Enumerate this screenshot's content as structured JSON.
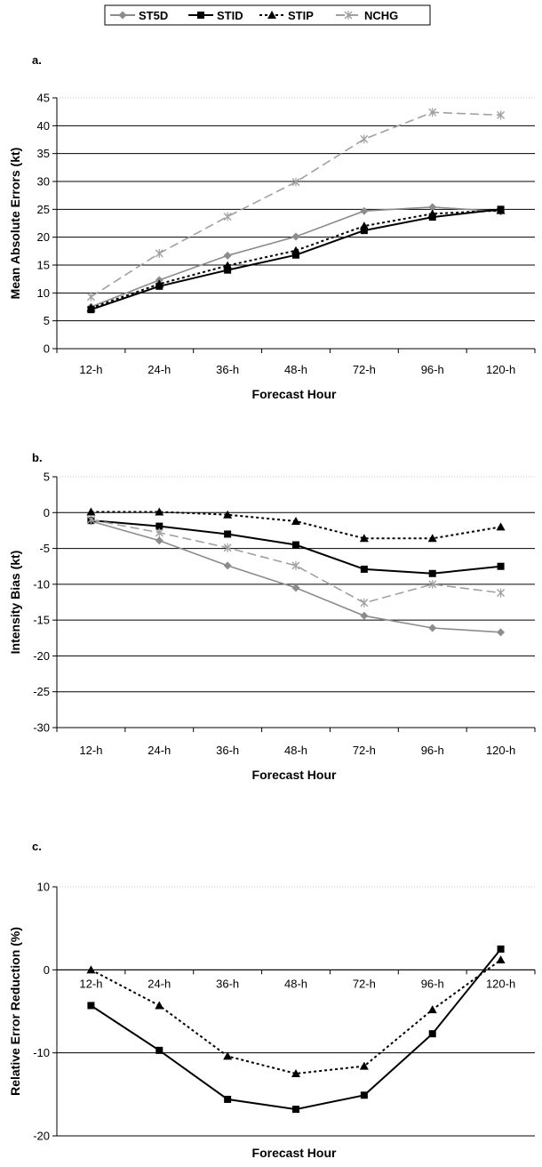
{
  "legend": {
    "entries": [
      "ST5D",
      "STID",
      "STIP",
      "NCHG"
    ]
  },
  "series_styles": {
    "ST5D": {
      "color": "#8c8c8c",
      "marker": "diamond",
      "dash": "solid"
    },
    "STID": {
      "color": "#000000",
      "marker": "square",
      "dash": "solid"
    },
    "STIP": {
      "color": "#000000",
      "marker": "triangle",
      "dash": "dotted"
    },
    "NCHG": {
      "color": "#a0a0a0",
      "marker": "x",
      "dash": "dashed"
    }
  },
  "chart_data": [
    {
      "panel": "a.",
      "type": "line",
      "categories": [
        "12-h",
        "24-h",
        "36-h",
        "48-h",
        "72-h",
        "96-h",
        "120-h"
      ],
      "xlabel": "Forecast Hour",
      "ylabel": "Mean Absolute Errors (kt)",
      "ylim": [
        0,
        45
      ],
      "yticks": [
        0,
        5,
        10,
        15,
        20,
        25,
        30,
        35,
        40,
        45
      ],
      "grid": true,
      "series": [
        {
          "name": "ST5D",
          "values": [
            7.5,
            12.3,
            16.7,
            20.1,
            24.7,
            25.4,
            24.6
          ]
        },
        {
          "name": "STID",
          "values": [
            7.0,
            11.2,
            14.1,
            16.8,
            21.2,
            23.6,
            25.0
          ]
        },
        {
          "name": "STIP",
          "values": [
            7.3,
            11.6,
            14.9,
            17.6,
            22.0,
            24.2,
            24.8
          ]
        },
        {
          "name": "NCHG",
          "values": [
            9.3,
            17.1,
            23.7,
            29.9,
            37.6,
            42.4,
            41.9
          ]
        }
      ]
    },
    {
      "panel": "b.",
      "type": "line",
      "categories": [
        "12-h",
        "24-h",
        "36-h",
        "48-h",
        "72-h",
        "96-h",
        "120-h"
      ],
      "xlabel": "Forecast Hour",
      "ylabel": "Intensity Bias (kt)",
      "ylim": [
        -30,
        5
      ],
      "yticks": [
        -30,
        -25,
        -20,
        -15,
        -10,
        -5,
        0,
        5
      ],
      "grid": true,
      "series": [
        {
          "name": "ST5D",
          "values": [
            -1.2,
            -3.9,
            -7.4,
            -10.5,
            -14.4,
            -16.1,
            -16.7
          ]
        },
        {
          "name": "STID",
          "values": [
            -1.1,
            -1.9,
            -3.0,
            -4.5,
            -7.9,
            -8.5,
            -7.5
          ]
        },
        {
          "name": "STIP",
          "values": [
            0.1,
            0.1,
            -0.3,
            -1.2,
            -3.6,
            -3.6,
            -2.0
          ]
        },
        {
          "name": "NCHG",
          "values": [
            -1.0,
            -2.8,
            -4.9,
            -7.4,
            -12.6,
            -10.0,
            -11.2
          ]
        }
      ]
    },
    {
      "panel": "c.",
      "type": "line",
      "categories": [
        "12-h",
        "24-h",
        "36-h",
        "48-h",
        "72-h",
        "96-h",
        "120-h"
      ],
      "xlabel": "Forecast Hour",
      "ylabel": "Relative Error Reduction (%)",
      "ylim": [
        -20,
        10
      ],
      "yticks": [
        -20,
        -10,
        0,
        10
      ],
      "grid": true,
      "series": [
        {
          "name": "STID",
          "values": [
            -4.3,
            -9.7,
            -15.6,
            -16.8,
            -15.1,
            -7.7,
            2.5
          ]
        },
        {
          "name": "STIP",
          "values": [
            0.0,
            -4.3,
            -10.4,
            -12.5,
            -11.6,
            -4.8,
            1.2
          ]
        }
      ]
    }
  ]
}
